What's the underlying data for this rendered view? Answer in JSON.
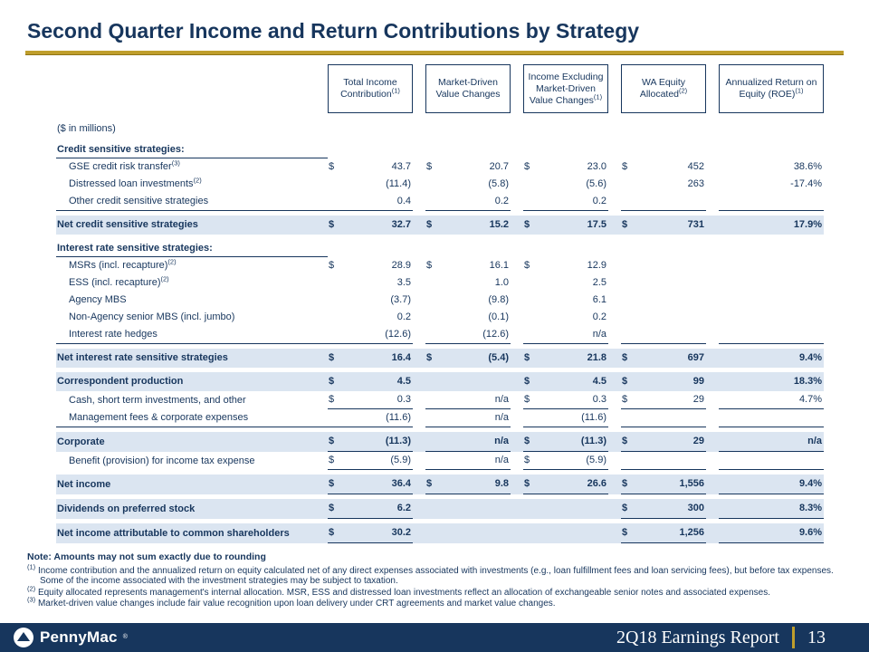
{
  "colors": {
    "navy": "#17365D",
    "gold": "#BF9E2C",
    "row_highlight": "#DBE5F1",
    "footer_background": "#17365D"
  },
  "slide": {
    "title": "Second Quarter Income and Return Contributions by Strategy"
  },
  "table": {
    "units_label": "($ in millions)",
    "columns": [
      {
        "label": "Total Income Contribution",
        "sup": "(1)"
      },
      {
        "label": "Market-Driven Value Changes",
        "sup": ""
      },
      {
        "label": "Income Excluding Market-Driven Value Changes",
        "sup": "(1)"
      },
      {
        "label": "WA Equity Allocated",
        "sup": "(2)"
      },
      {
        "label": "Annualized Return on Equity (ROE)",
        "sup": "(1)"
      }
    ],
    "rows": [
      {
        "type": "section",
        "label": "Credit sensitive strategies:",
        "sup": "",
        "label_underline": true,
        "cells": []
      },
      {
        "type": "item",
        "label": "GSE credit risk transfer",
        "sup": "(3)",
        "cells": [
          {
            "d": "$",
            "v": "43.7"
          },
          {
            "d": "$",
            "v": "20.7"
          },
          {
            "d": "$",
            "v": "23.0"
          },
          {
            "d": "$",
            "v": "452"
          },
          {
            "d": "",
            "v": "38.6%"
          }
        ]
      },
      {
        "type": "item",
        "label": "Distressed loan investments",
        "sup": "(2)",
        "cells": [
          {
            "d": "",
            "v": "(11.4)"
          },
          {
            "d": "",
            "v": "(5.8)"
          },
          {
            "d": "",
            "v": "(5.6)"
          },
          {
            "d": "",
            "v": "263"
          },
          {
            "d": "",
            "v": "-17.4%"
          }
        ]
      },
      {
        "type": "item",
        "label": "Other credit sensitive strategies",
        "sup": "",
        "label_underline": true,
        "ucols": [
          0,
          1,
          2,
          3,
          4
        ],
        "cells": [
          {
            "d": "",
            "v": "0.4"
          },
          {
            "d": "",
            "v": "0.2"
          },
          {
            "d": "",
            "v": "0.2"
          },
          {
            "d": "",
            "v": ""
          },
          {
            "d": "",
            "v": ""
          }
        ]
      },
      {
        "type": "total",
        "label": "Net credit sensitive strategies",
        "sup": "",
        "cells": [
          {
            "d": "$",
            "v": "32.7"
          },
          {
            "d": "$",
            "v": "15.2"
          },
          {
            "d": "$",
            "v": "17.5"
          },
          {
            "d": "$",
            "v": "731"
          },
          {
            "d": "",
            "v": "17.9%"
          }
        ]
      },
      {
        "type": "section",
        "label": "Interest rate sensitive strategies:",
        "sup": "",
        "label_underline": true,
        "cells": []
      },
      {
        "type": "item",
        "label": "MSRs (incl. recapture)",
        "sup": "(2)",
        "cells": [
          {
            "d": "$",
            "v": "28.9"
          },
          {
            "d": "$",
            "v": "16.1"
          },
          {
            "d": "$",
            "v": "12.9"
          },
          {
            "d": "",
            "v": ""
          },
          {
            "d": "",
            "v": ""
          }
        ]
      },
      {
        "type": "item",
        "label": "ESS (incl. recapture)",
        "sup": "(2)",
        "cells": [
          {
            "d": "",
            "v": "3.5"
          },
          {
            "d": "",
            "v": "1.0"
          },
          {
            "d": "",
            "v": "2.5"
          },
          {
            "d": "",
            "v": ""
          },
          {
            "d": "",
            "v": ""
          }
        ]
      },
      {
        "type": "item",
        "label": "Agency MBS",
        "sup": "",
        "cells": [
          {
            "d": "",
            "v": "(3.7)"
          },
          {
            "d": "",
            "v": "(9.8)"
          },
          {
            "d": "",
            "v": "6.1"
          },
          {
            "d": "",
            "v": ""
          },
          {
            "d": "",
            "v": ""
          }
        ]
      },
      {
        "type": "item",
        "label": "Non-Agency senior MBS (incl. jumbo)",
        "sup": "",
        "cells": [
          {
            "d": "",
            "v": "0.2"
          },
          {
            "d": "",
            "v": "(0.1)"
          },
          {
            "d": "",
            "v": "0.2"
          },
          {
            "d": "",
            "v": ""
          },
          {
            "d": "",
            "v": ""
          }
        ]
      },
      {
        "type": "item",
        "label": "Interest rate hedges",
        "sup": "",
        "label_underline": true,
        "ucols": [
          0,
          1,
          2,
          3,
          4
        ],
        "cells": [
          {
            "d": "",
            "v": "(12.6)"
          },
          {
            "d": "",
            "v": "(12.6)"
          },
          {
            "d": "",
            "v": "n/a"
          },
          {
            "d": "",
            "v": ""
          },
          {
            "d": "",
            "v": ""
          }
        ]
      },
      {
        "type": "total",
        "label": "Net interest rate sensitive strategies",
        "sup": "",
        "cells": [
          {
            "d": "$",
            "v": "16.4"
          },
          {
            "d": "$",
            "v": "(5.4)"
          },
          {
            "d": "$",
            "v": "21.8"
          },
          {
            "d": "$",
            "v": "697"
          },
          {
            "d": "",
            "v": "9.4%"
          }
        ]
      },
      {
        "type": "total",
        "label": "Correspondent production",
        "sup": "",
        "cells": [
          {
            "d": "$",
            "v": "4.5"
          },
          {
            "d": "",
            "v": ""
          },
          {
            "d": "$",
            "v": "4.5"
          },
          {
            "d": "$",
            "v": "99"
          },
          {
            "d": "",
            "v": "18.3%"
          }
        ]
      },
      {
        "type": "item",
        "label": "Cash, short term investments, and other",
        "sup": "",
        "ucols": [
          0,
          1,
          2,
          3,
          4
        ],
        "cells": [
          {
            "d": "$",
            "v": "0.3"
          },
          {
            "d": "",
            "v": "n/a"
          },
          {
            "d": "$",
            "v": "0.3"
          },
          {
            "d": "$",
            "v": "29"
          },
          {
            "d": "",
            "v": "4.7%"
          }
        ]
      },
      {
        "type": "item",
        "label": "Management fees & corporate expenses",
        "sup": "",
        "label_underline": true,
        "ucols": [
          0,
          1,
          2,
          3,
          4
        ],
        "cells": [
          {
            "d": "",
            "v": "(11.6)"
          },
          {
            "d": "",
            "v": "n/a"
          },
          {
            "d": "",
            "v": "(11.6)"
          },
          {
            "d": "",
            "v": ""
          },
          {
            "d": "",
            "v": ""
          }
        ]
      },
      {
        "type": "total",
        "label": "Corporate",
        "sup": "",
        "ucols": [
          0,
          1,
          2,
          3,
          4
        ],
        "cells": [
          {
            "d": "$",
            "v": "(11.3)"
          },
          {
            "d": "",
            "v": "n/a"
          },
          {
            "d": "$",
            "v": "(11.3)"
          },
          {
            "d": "$",
            "v": "29"
          },
          {
            "d": "",
            "v": "n/a"
          }
        ]
      },
      {
        "type": "item",
        "label": "Benefit (provision) for income tax expense",
        "sup": "",
        "ucols": [
          0,
          1,
          2,
          3,
          4
        ],
        "cells": [
          {
            "d": "$",
            "v": "(5.9)"
          },
          {
            "d": "",
            "v": "n/a"
          },
          {
            "d": "$",
            "v": "(5.9)"
          },
          {
            "d": "",
            "v": ""
          },
          {
            "d": "",
            "v": ""
          }
        ]
      },
      {
        "type": "total",
        "label": "Net income",
        "sup": "",
        "ucols": [
          0,
          1,
          2,
          3,
          4
        ],
        "cells": [
          {
            "d": "$",
            "v": "36.4"
          },
          {
            "d": "$",
            "v": "9.8"
          },
          {
            "d": "$",
            "v": "26.6"
          },
          {
            "d": "$",
            "v": "1,556"
          },
          {
            "d": "",
            "v": "9.4%"
          }
        ]
      },
      {
        "type": "total",
        "label": "Dividends on preferred stock",
        "sup": "",
        "ucols": [
          0,
          3,
          4
        ],
        "cells": [
          {
            "d": "$",
            "v": "6.2"
          },
          {
            "d": "",
            "v": ""
          },
          {
            "d": "",
            "v": ""
          },
          {
            "d": "$",
            "v": "300"
          },
          {
            "d": "",
            "v": "8.3%"
          }
        ]
      },
      {
        "type": "total",
        "label": "Net income attributable to common shareholders",
        "sup": "",
        "ucols": [
          0,
          3,
          4
        ],
        "cells": [
          {
            "d": "$",
            "v": "30.2"
          },
          {
            "d": "",
            "v": ""
          },
          {
            "d": "",
            "v": ""
          },
          {
            "d": "$",
            "v": "1,256"
          },
          {
            "d": "",
            "v": "9.6%"
          }
        ]
      }
    ]
  },
  "notes": {
    "rounding": "Note: Amounts may not sum exactly due to rounding",
    "items": [
      {
        "marker": "(1)",
        "text": "Income contribution and the annualized return on equity calculated net of any direct expenses associated with investments (e.g., loan fulfillment fees and loan servicing fees), but before tax expenses.  Some of the income associated with the investment strategies may be subject to taxation."
      },
      {
        "marker": "(2)",
        "text": "Equity allocated represents management's internal allocation.  MSR, ESS and distressed loan investments reflect an allocation of exchangeable senior notes and associated expenses."
      },
      {
        "marker": "(3)",
        "text": "Market-driven value changes include fair value recognition upon loan delivery under CRT agreements and market value changes."
      }
    ]
  },
  "footer": {
    "brand": "PennyMac",
    "registered": "®",
    "report_title": "2Q18 Earnings Report",
    "page_number": "13"
  }
}
